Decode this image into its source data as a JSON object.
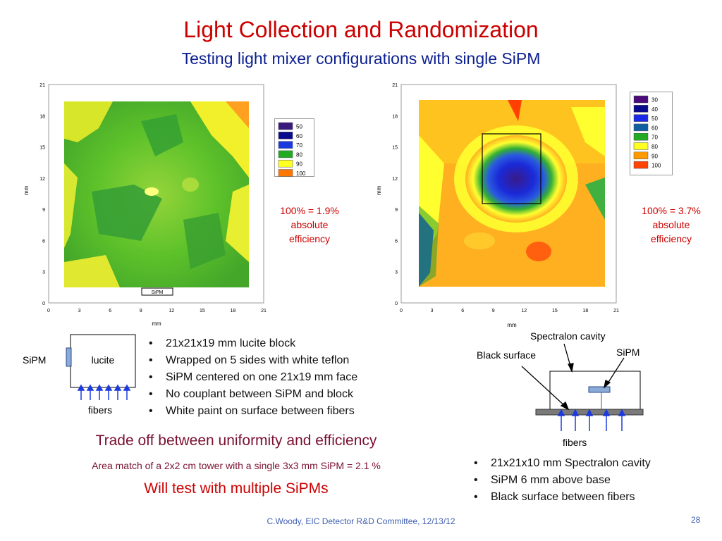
{
  "slide": {
    "title": "Light Collection and Randomization",
    "subtitle": "Testing light mixer configurations with single SiPM",
    "page_number": "28",
    "footer": "C.Woody, EIC Detector R&D Committee,  12/13/12"
  },
  "plot_left": {
    "x_axis_label": "mm",
    "y_axis_label": "mm",
    "ticks": [
      "0",
      "3",
      "6",
      "9",
      "12",
      "15",
      "18",
      "21"
    ],
    "legend": [
      "50",
      "60",
      "70",
      "80",
      "90",
      "100"
    ],
    "legend_colors": [
      "#3a1a7a",
      "#0a0a8c",
      "#1a3ae0",
      "#22aa22",
      "#ffff22",
      "#ff7700"
    ],
    "sipm_label": "SiPM",
    "efficiency": [
      "100% = 1.9%",
      "absolute",
      "efficiency"
    ]
  },
  "plot_right": {
    "x_axis_label": "mm",
    "y_axis_label": "mm",
    "ticks": [
      "0",
      "3",
      "6",
      "9",
      "12",
      "15",
      "18",
      "21"
    ],
    "legend": [
      "30",
      "40",
      "50",
      "60",
      "70",
      "80",
      "90",
      "100"
    ],
    "legend_colors": [
      "#4a0a7a",
      "#0a0a8c",
      "#1a2ae8",
      "#1060a0",
      "#22aa22",
      "#ffff22",
      "#ff9900",
      "#ff4400"
    ],
    "efficiency": [
      "100% = 3.7%",
      "absolute",
      "efficiency"
    ]
  },
  "diagram_left": {
    "sipm": "SiPM",
    "block": "lucite",
    "fibers": "fibers"
  },
  "bullets_left": [
    "21x21x19 mm lucite block",
    "Wrapped on 5 sides with white teflon",
    "SiPM centered on one 21x19 mm face",
    "No couplant between SiPM and block",
    "White paint on surface between fibers"
  ],
  "diagram_right": {
    "cavity": "Spectralon cavity",
    "black": "Black surface",
    "sipm": "SiPM",
    "fibers": "fibers"
  },
  "bullets_right": [
    "21x21x10 mm Spectralon cavity",
    "SiPM 6 mm above base",
    "Black surface between fibers"
  ],
  "conclusions": {
    "tradeoff": "Trade off between uniformity and efficiency",
    "area_match": "Area match of a 2x2 cm tower with a single 3x3 mm SiPM = 2.1 %",
    "will_test": "Will test with multiple SiPMs"
  }
}
